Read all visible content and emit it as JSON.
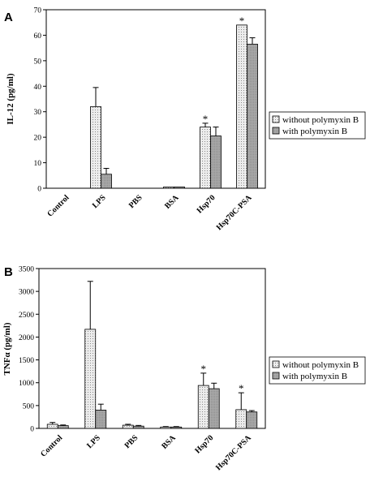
{
  "colors": {
    "series1_fill": "#ececec",
    "series2_fill": "#a8a8a8",
    "stroke": "#000000"
  },
  "chart_data": [
    {
      "panel": "A",
      "type": "bar",
      "ylabel": "IL-12 (pg/ml)",
      "ylim": [
        0,
        70
      ],
      "yticks": [
        0,
        10,
        20,
        30,
        40,
        50,
        60,
        70
      ],
      "categories": [
        "Control",
        "LPS",
        "PBS",
        "BSA",
        "Hsp70",
        "Hsp70C-PSA"
      ],
      "series": [
        {
          "name": "without polymyxin B",
          "values": [
            0,
            32,
            0,
            0.5,
            24,
            64
          ],
          "errors": [
            0,
            7.5,
            0,
            0,
            1.5,
            0
          ],
          "stars": [
            false,
            false,
            false,
            false,
            true,
            true
          ]
        },
        {
          "name": "with polymyxin B",
          "values": [
            0,
            5.5,
            0,
            0.5,
            20.5,
            56.5
          ],
          "errors": [
            0,
            2.3,
            0,
            0,
            3.5,
            2.5
          ],
          "stars": [
            false,
            false,
            false,
            false,
            false,
            false
          ]
        }
      ],
      "legend": "right",
      "grid": false
    },
    {
      "panel": "B",
      "type": "bar",
      "ylabel": "TNFα (pg/ml)",
      "ylim": [
        0,
        3500
      ],
      "yticks": [
        0,
        500,
        1000,
        1500,
        2000,
        2500,
        3000,
        3500
      ],
      "categories": [
        "Control",
        "LPS",
        "PBS",
        "BSA",
        "Hsp70",
        "Hsp70C-PSA"
      ],
      "series": [
        {
          "name": "without polymyxin B",
          "values": [
            90,
            2170,
            70,
            30,
            940,
            410
          ],
          "errors": [
            40,
            1050,
            20,
            10,
            270,
            370
          ],
          "stars": [
            false,
            false,
            false,
            false,
            true,
            true
          ]
        },
        {
          "name": "with polymyxin B",
          "values": [
            60,
            400,
            50,
            30,
            870,
            360
          ],
          "errors": [
            15,
            130,
            15,
            10,
            120,
            30
          ],
          "stars": [
            false,
            false,
            false,
            false,
            false,
            false
          ]
        }
      ],
      "legend": "right",
      "grid": false
    }
  ]
}
